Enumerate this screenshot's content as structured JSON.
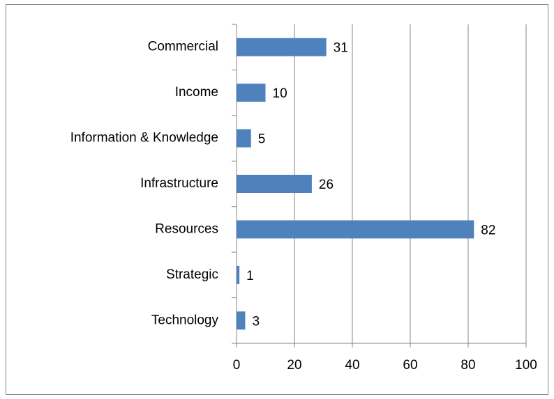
{
  "chart_data": {
    "type": "bar",
    "orientation": "horizontal",
    "categories": [
      "Commercial",
      "Income",
      "Information & Knowledge",
      "Infrastructure",
      "Resources",
      "Strategic",
      "Technology"
    ],
    "values": [
      31,
      10,
      5,
      26,
      82,
      1,
      3
    ],
    "color": "#4f81bd",
    "xlim": [
      0,
      100
    ],
    "xticks": [
      0,
      20,
      40,
      60,
      80,
      100
    ],
    "grid": true,
    "data_labels": true
  }
}
